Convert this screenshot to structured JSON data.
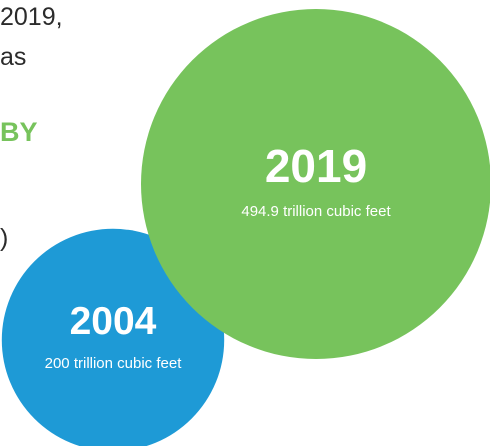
{
  "text_fragments": {
    "year": "2019,",
    "as": "as",
    "by": "BY",
    "paren": ")"
  },
  "colors": {
    "series_2019": "#77c35c",
    "series_2004": "#1e9ad6",
    "text_on_bubble": "#ffffff",
    "body_text": "#2b2b2b",
    "accent_heading": "#77c35c"
  },
  "chart_data": {
    "type": "bubble",
    "unit": "trillion cubic feet",
    "points": [
      {
        "label": "2004",
        "value": 200,
        "caption": "200 trillion cubic feet"
      },
      {
        "label": "2019",
        "value": 494.9,
        "caption": "494.9 trillion cubic feet"
      }
    ]
  }
}
